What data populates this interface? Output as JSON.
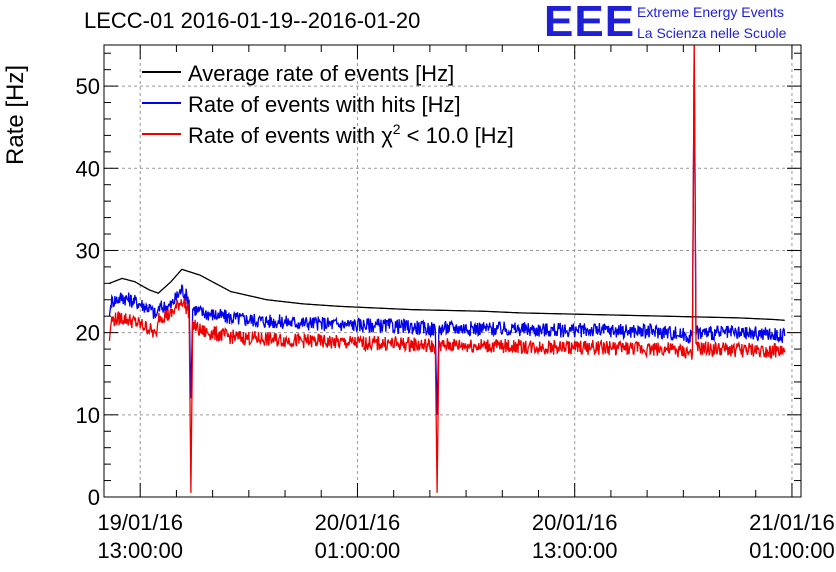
{
  "chart_data": {
    "type": "line",
    "title": "LECC-01 2016-01-19--2016-01-20",
    "ylabel": "Rate [Hz]",
    "xlabel": "",
    "ylim": [
      0,
      55
    ],
    "xlim_hours": [
      -2.0,
      36.5
    ],
    "yticks": [
      0,
      10,
      20,
      30,
      40,
      50
    ],
    "xticks": [
      {
        "hour": 0,
        "line1": "19/01/16",
        "line2": "13:00:00"
      },
      {
        "hour": 12,
        "line1": "20/01/16",
        "line2": "01:00:00"
      },
      {
        "hour": 24,
        "line1": "20/01/16",
        "line2": "13:00:00"
      },
      {
        "hour": 36,
        "line1": "21/01/16",
        "line2": "01:00:00"
      }
    ],
    "grid": true,
    "legend_position": "top-left",
    "series": [
      {
        "name": "Average rate of events [Hz]",
        "color": "#000000",
        "x_hours": [
          -1.7,
          -1.0,
          -0.3,
          0.5,
          1.0,
          1.7,
          2.3,
          3.3,
          5.0,
          7.0,
          9.0,
          11.0,
          13.0,
          15.0,
          17.0,
          19.0,
          21.0,
          23.0,
          25.0,
          27.0,
          29.0,
          31.0,
          33.0,
          35.0,
          35.6
        ],
        "values": [
          26.0,
          26.6,
          26.2,
          25.2,
          24.8,
          26.2,
          27.7,
          27.0,
          25.0,
          24.0,
          23.5,
          23.2,
          23.0,
          22.8,
          22.7,
          22.6,
          22.4,
          22.3,
          22.2,
          22.1,
          22.0,
          21.9,
          21.8,
          21.6,
          21.5
        ]
      },
      {
        "name": "Rate of events with hits [Hz]",
        "color": "#0000ee",
        "x_hours": [
          -1.7,
          -1.6,
          -1.0,
          -0.3,
          0.5,
          0.9,
          1.0,
          1.7,
          2.3,
          2.7,
          2.8,
          2.9,
          3.3,
          5.0,
          7.0,
          9.0,
          11.0,
          13.0,
          15.0,
          16.3,
          16.4,
          16.5,
          17.0,
          19.0,
          21.0,
          23.0,
          25.0,
          27.0,
          29.0,
          30.5,
          30.6,
          30.7,
          31.0,
          33.0,
          35.0,
          35.6
        ],
        "values": [
          22.0,
          23.8,
          24.3,
          23.8,
          23.0,
          22.0,
          23.0,
          23.3,
          25.3,
          24.0,
          12.0,
          23.0,
          22.5,
          21.8,
          21.4,
          21.2,
          21.0,
          20.9,
          20.7,
          20.4,
          10.0,
          20.5,
          20.6,
          20.5,
          20.4,
          20.3,
          20.3,
          20.2,
          20.1,
          19.5,
          54.0,
          20.0,
          20.0,
          19.9,
          19.8,
          19.6
        ]
      },
      {
        "name": "Rate of events with χ² < 10.0 [Hz]",
        "color": "#ee0000",
        "x_hours": [
          -1.7,
          -1.6,
          -1.0,
          -0.3,
          0.5,
          0.9,
          1.0,
          1.7,
          2.3,
          2.7,
          2.8,
          2.9,
          3.3,
          5.0,
          7.0,
          9.0,
          11.0,
          13.0,
          15.0,
          16.3,
          16.4,
          16.5,
          17.0,
          19.0,
          21.0,
          23.0,
          25.0,
          27.0,
          29.0,
          30.5,
          30.6,
          30.7,
          31.0,
          33.0,
          35.0,
          35.6
        ],
        "values": [
          19.0,
          21.5,
          21.8,
          21.3,
          20.5,
          19.5,
          22.0,
          22.2,
          24.0,
          22.5,
          0.5,
          21.0,
          20.2,
          19.5,
          19.2,
          19.0,
          18.8,
          18.7,
          18.6,
          18.3,
          0.5,
          18.3,
          18.5,
          18.4,
          18.3,
          18.2,
          18.2,
          18.1,
          18.0,
          17.5,
          56.0,
          18.0,
          18.0,
          17.9,
          17.8,
          17.6
        ]
      }
    ]
  },
  "logo": {
    "mark": "EEE",
    "line1": "Extreme Energy Events",
    "line2": "La Scienza nelle Scuole"
  },
  "legend": {
    "item0": "Average rate of events [Hz]",
    "item1": "Rate of events with hits [Hz]",
    "item2_prefix": "Rate of events with χ",
    "item2_sup": "2",
    "item2_suffix": " < 10.0 [Hz]"
  }
}
